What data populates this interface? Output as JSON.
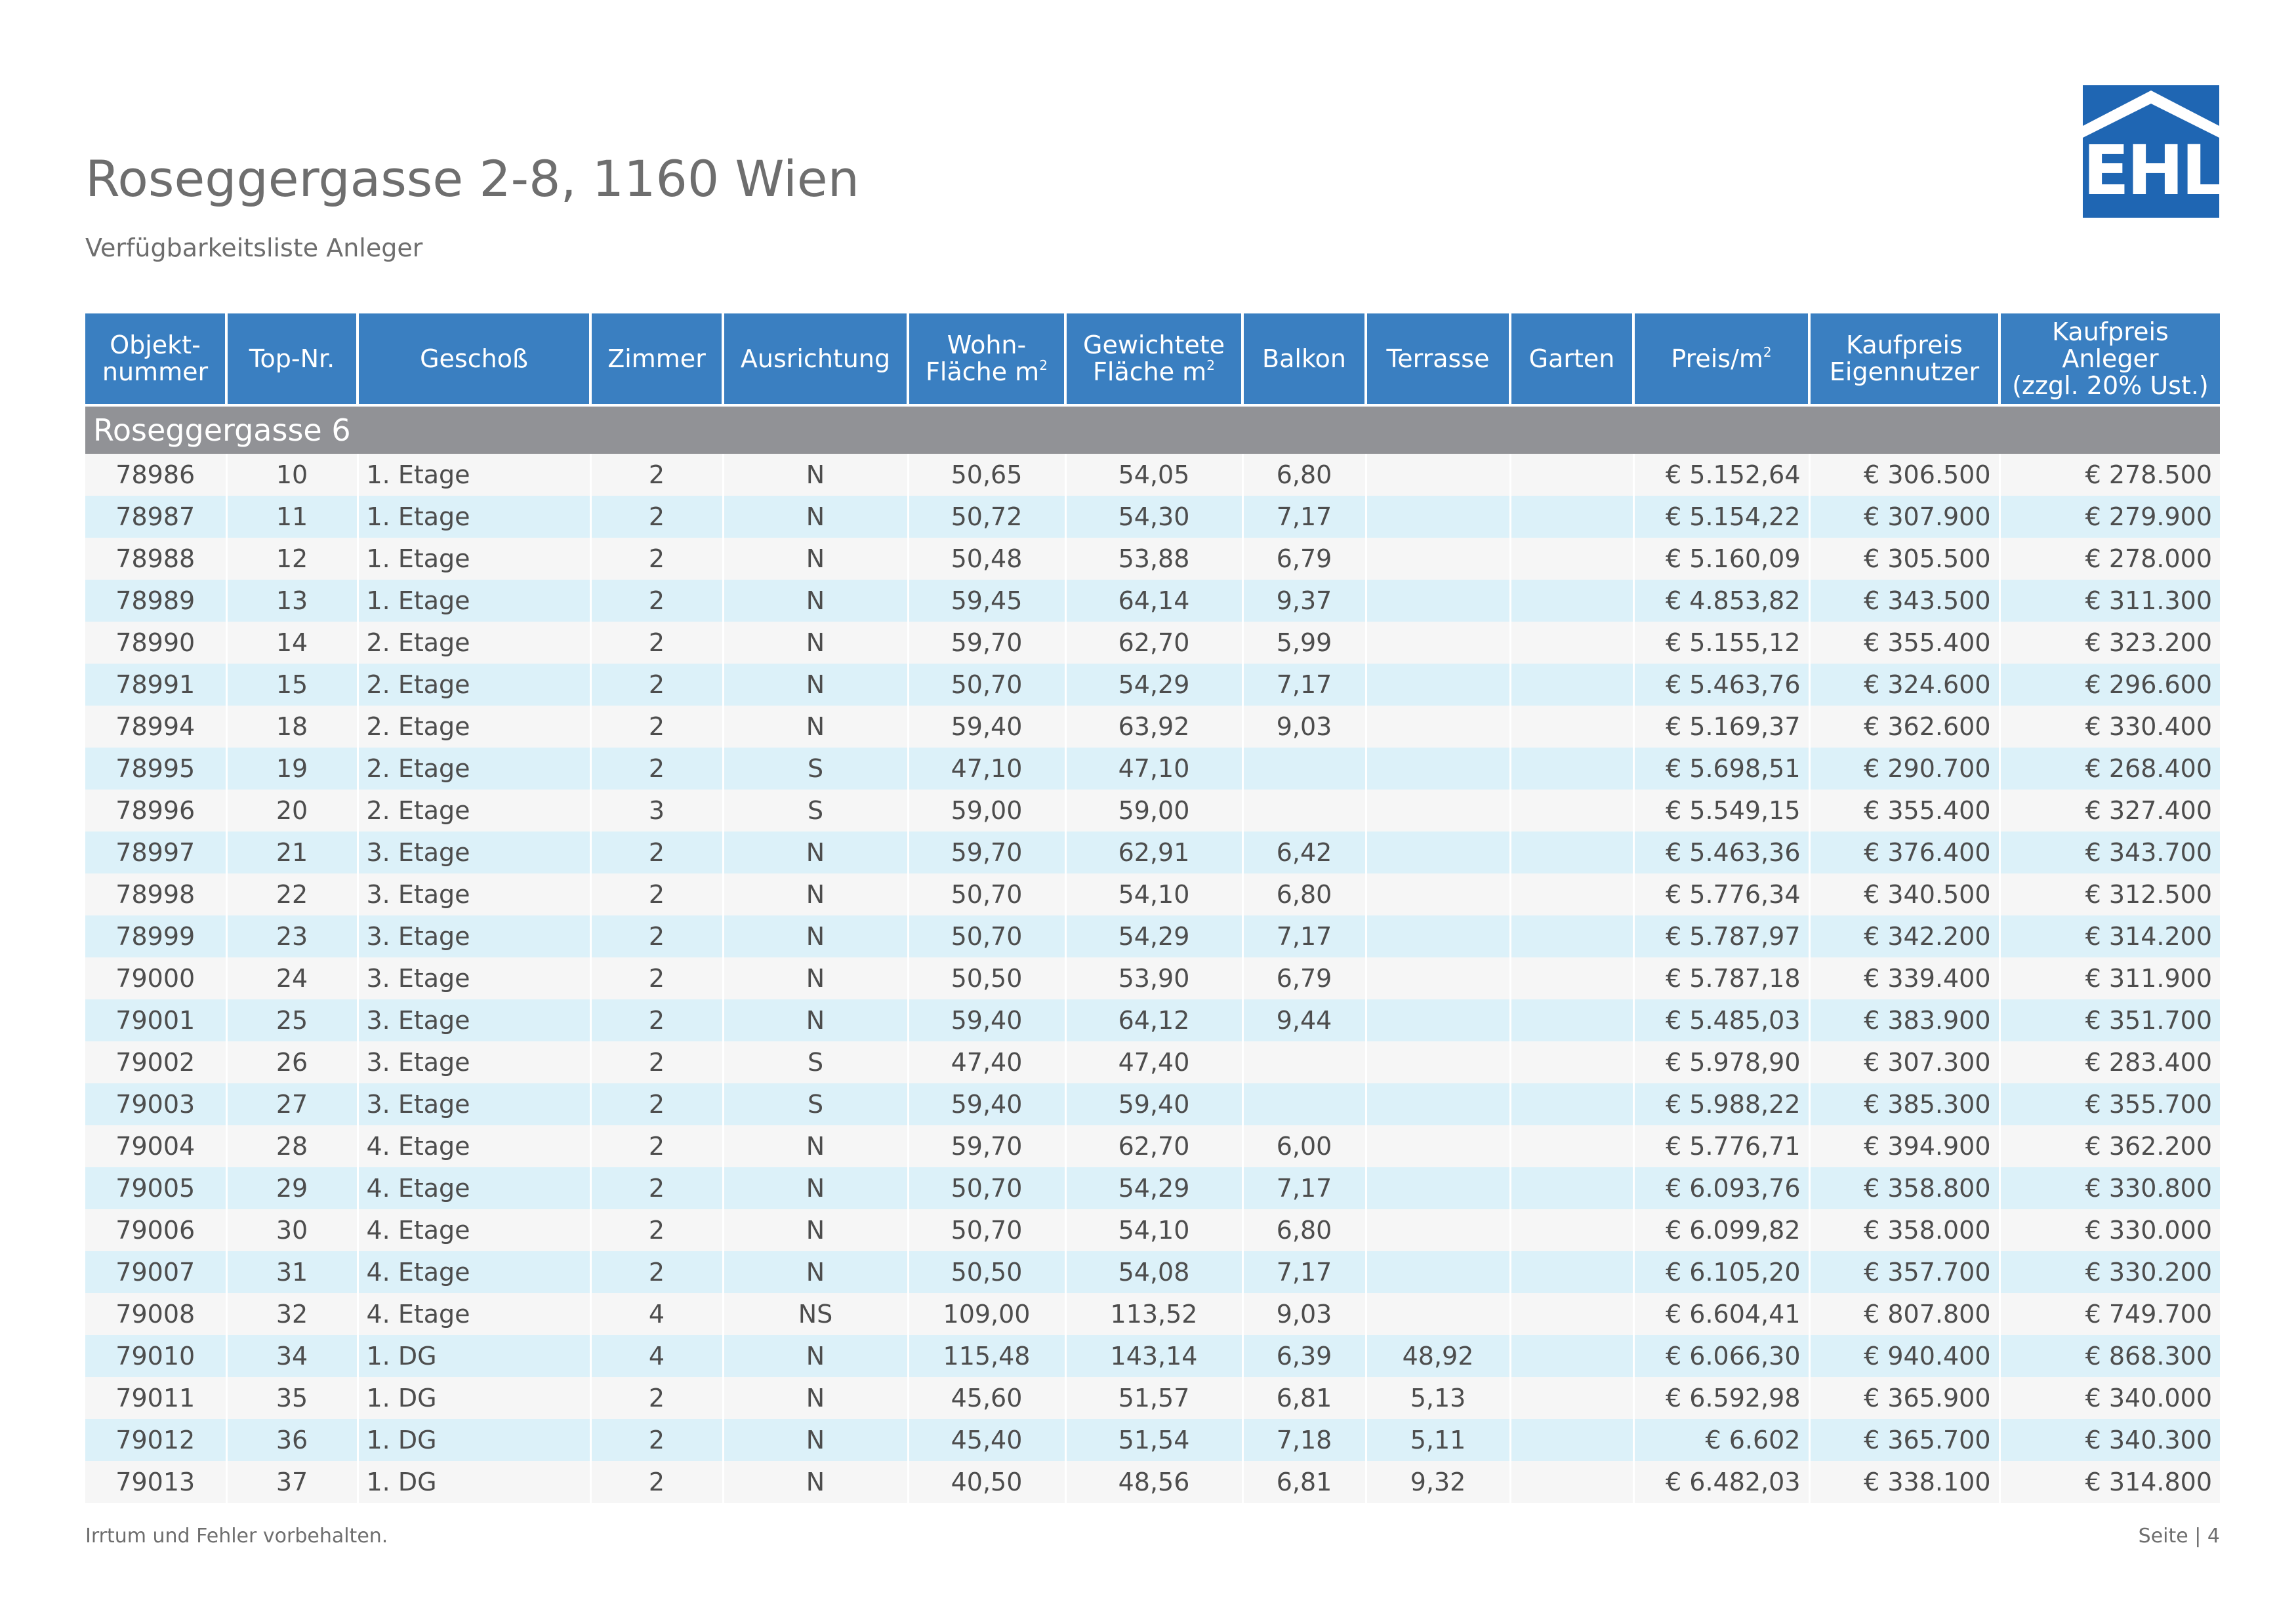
{
  "header": {
    "title": "Roseggergasse 2-8, 1160 Wien",
    "subtitle": "Verfügbarkeitsliste Anleger",
    "logo_text": "EHL"
  },
  "colors": {
    "header_blue": "#3a7fc1",
    "group_gray": "#919296",
    "row_blue": "#dcf1f9",
    "row_gray": "#f6f6f6",
    "logo_blue": "#1f66b3"
  },
  "table": {
    "columns": [
      {
        "line1": "Objekt-",
        "line2": "nummer",
        "line3": ""
      },
      {
        "line1": "Top-Nr.",
        "line2": "",
        "line3": ""
      },
      {
        "line1": "Geschoß",
        "line2": "",
        "line3": ""
      },
      {
        "line1": "Zimmer",
        "line2": "",
        "line3": ""
      },
      {
        "line1": "Ausrichtung",
        "line2": "",
        "line3": ""
      },
      {
        "line1": "Wohn-",
        "line2": "Fläche m",
        "line3": "",
        "sup": "2"
      },
      {
        "line1": "Gewichtete",
        "line2": "Fläche m",
        "line3": "",
        "sup": "2"
      },
      {
        "line1": "Balkon",
        "line2": "",
        "line3": ""
      },
      {
        "line1": "Terrasse",
        "line2": "",
        "line3": ""
      },
      {
        "line1": "Garten",
        "line2": "",
        "line3": ""
      },
      {
        "line1": "Preis/m",
        "line2": "",
        "line3": "",
        "sup": "2"
      },
      {
        "line1": "Kaufpreis",
        "line2": "Eigennutzer",
        "line3": ""
      },
      {
        "line1": "Kaufpreis",
        "line2": "Anleger",
        "line3": "(zzgl. 20% Ust.)"
      }
    ],
    "group_label": "Roseggergasse 6",
    "rows": [
      [
        "78986",
        "10",
        "1. Etage",
        "2",
        "N",
        "50,65",
        "54,05",
        "6,80",
        "",
        "",
        "€ 5.152,64",
        "€ 306.500",
        "€ 278.500"
      ],
      [
        "78987",
        "11",
        "1. Etage",
        "2",
        "N",
        "50,72",
        "54,30",
        "7,17",
        "",
        "",
        "€ 5.154,22",
        "€ 307.900",
        "€ 279.900"
      ],
      [
        "78988",
        "12",
        "1. Etage",
        "2",
        "N",
        "50,48",
        "53,88",
        "6,79",
        "",
        "",
        "€ 5.160,09",
        "€ 305.500",
        "€ 278.000"
      ],
      [
        "78989",
        "13",
        "1. Etage",
        "2",
        "N",
        "59,45",
        "64,14",
        "9,37",
        "",
        "",
        "€ 4.853,82",
        "€ 343.500",
        "€ 311.300"
      ],
      [
        "78990",
        "14",
        "2. Etage",
        "2",
        "N",
        "59,70",
        "62,70",
        "5,99",
        "",
        "",
        "€ 5.155,12",
        "€ 355.400",
        "€ 323.200"
      ],
      [
        "78991",
        "15",
        "2. Etage",
        "2",
        "N",
        "50,70",
        "54,29",
        "7,17",
        "",
        "",
        "€ 5.463,76",
        "€ 324.600",
        "€ 296.600"
      ],
      [
        "78994",
        "18",
        "2. Etage",
        "2",
        "N",
        "59,40",
        "63,92",
        "9,03",
        "",
        "",
        "€ 5.169,37",
        "€ 362.600",
        "€ 330.400"
      ],
      [
        "78995",
        "19",
        "2. Etage",
        "2",
        "S",
        "47,10",
        "47,10",
        "",
        "",
        "",
        "€ 5.698,51",
        "€ 290.700",
        "€ 268.400"
      ],
      [
        "78996",
        "20",
        "2. Etage",
        "3",
        "S",
        "59,00",
        "59,00",
        "",
        "",
        "",
        "€ 5.549,15",
        "€ 355.400",
        "€ 327.400"
      ],
      [
        "78997",
        "21",
        "3. Etage",
        "2",
        "N",
        "59,70",
        "62,91",
        "6,42",
        "",
        "",
        "€ 5.463,36",
        "€ 376.400",
        "€ 343.700"
      ],
      [
        "78998",
        "22",
        "3. Etage",
        "2",
        "N",
        "50,70",
        "54,10",
        "6,80",
        "",
        "",
        "€ 5.776,34",
        "€ 340.500",
        "€ 312.500"
      ],
      [
        "78999",
        "23",
        "3. Etage",
        "2",
        "N",
        "50,70",
        "54,29",
        "7,17",
        "",
        "",
        "€ 5.787,97",
        "€ 342.200",
        "€ 314.200"
      ],
      [
        "79000",
        "24",
        "3. Etage",
        "2",
        "N",
        "50,50",
        "53,90",
        "6,79",
        "",
        "",
        "€ 5.787,18",
        "€ 339.400",
        "€ 311.900"
      ],
      [
        "79001",
        "25",
        "3. Etage",
        "2",
        "N",
        "59,40",
        "64,12",
        "9,44",
        "",
        "",
        "€ 5.485,03",
        "€ 383.900",
        "€ 351.700"
      ],
      [
        "79002",
        "26",
        "3. Etage",
        "2",
        "S",
        "47,40",
        "47,40",
        "",
        "",
        "",
        "€ 5.978,90",
        "€ 307.300",
        "€ 283.400"
      ],
      [
        "79003",
        "27",
        "3. Etage",
        "2",
        "S",
        "59,40",
        "59,40",
        "",
        "",
        "",
        "€ 5.988,22",
        "€ 385.300",
        "€ 355.700"
      ],
      [
        "79004",
        "28",
        "4. Etage",
        "2",
        "N",
        "59,70",
        "62,70",
        "6,00",
        "",
        "",
        "€ 5.776,71",
        "€ 394.900",
        "€ 362.200"
      ],
      [
        "79005",
        "29",
        "4. Etage",
        "2",
        "N",
        "50,70",
        "54,29",
        "7,17",
        "",
        "",
        "€ 6.093,76",
        "€ 358.800",
        "€ 330.800"
      ],
      [
        "79006",
        "30",
        "4. Etage",
        "2",
        "N",
        "50,70",
        "54,10",
        "6,80",
        "",
        "",
        "€ 6.099,82",
        "€ 358.000",
        "€ 330.000"
      ],
      [
        "79007",
        "31",
        "4. Etage",
        "2",
        "N",
        "50,50",
        "54,08",
        "7,17",
        "",
        "",
        "€ 6.105,20",
        "€ 357.700",
        "€ 330.200"
      ],
      [
        "79008",
        "32",
        "4. Etage",
        "4",
        "NS",
        "109,00",
        "113,52",
        "9,03",
        "",
        "",
        "€ 6.604,41",
        "€ 807.800",
        "€ 749.700"
      ],
      [
        "79010",
        "34",
        "1. DG",
        "4",
        "N",
        "115,48",
        "143,14",
        "6,39",
        "48,92",
        "",
        "€ 6.066,30",
        "€ 940.400",
        "€ 868.300"
      ],
      [
        "79011",
        "35",
        "1. DG",
        "2",
        "N",
        "45,60",
        "51,57",
        "6,81",
        "5,13",
        "",
        "€ 6.592,98",
        "€ 365.900",
        "€ 340.000"
      ],
      [
        "79012",
        "36",
        "1. DG",
        "2",
        "N",
        "45,40",
        "51,54",
        "7,18",
        "5,11",
        "",
        "€ 6.602",
        "€ 365.700",
        "€ 340.300"
      ],
      [
        "79013",
        "37",
        "1. DG",
        "2",
        "N",
        "40,50",
        "48,56",
        "6,81",
        "9,32",
        "",
        "€ 6.482,03",
        "€ 338.100",
        "€ 314.800"
      ]
    ]
  },
  "footer": {
    "disclaimer": "Irrtum und Fehler vorbehalten.",
    "page": "Seite | 4"
  }
}
